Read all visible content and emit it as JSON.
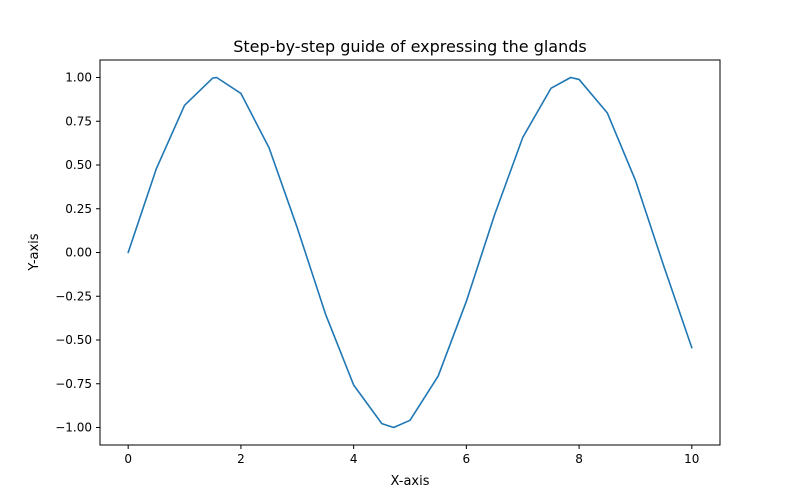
{
  "chart_data": {
    "type": "line",
    "title": "Step-by-step guide of expressing the glands",
    "xlabel": "X-axis",
    "ylabel": "Y-axis",
    "xlim": [
      -0.5,
      10.5
    ],
    "ylim": [
      -1.1,
      1.1
    ],
    "x_ticks": [
      0,
      2,
      4,
      6,
      8,
      10
    ],
    "x_tick_labels": [
      "0",
      "2",
      "4",
      "6",
      "8",
      "10"
    ],
    "y_ticks": [
      -1.0,
      -0.75,
      -0.5,
      -0.25,
      0.0,
      0.25,
      0.5,
      0.75,
      1.0
    ],
    "y_tick_labels": [
      "−1.00",
      "−0.75",
      "−0.50",
      "−0.25",
      "0.00",
      "0.25",
      "0.50",
      "0.75",
      "1.00"
    ],
    "grid": false,
    "series": [
      {
        "color": "#1f77b4",
        "x": [
          0,
          0.5,
          1,
          1.5,
          1.57,
          2,
          2.5,
          3,
          3.5,
          4,
          4.5,
          4.71,
          5,
          5.5,
          6,
          6.5,
          7,
          7.5,
          7.85,
          8,
          8.5,
          9,
          9.5,
          10
        ],
        "y": [
          0.0,
          0.479,
          0.841,
          0.997,
          1.0,
          0.909,
          0.598,
          0.141,
          -0.351,
          -0.757,
          -0.978,
          -1.0,
          -0.959,
          -0.706,
          -0.279,
          0.215,
          0.657,
          0.938,
          1.0,
          0.989,
          0.798,
          0.412,
          -0.075,
          -0.544
        ]
      }
    ]
  }
}
